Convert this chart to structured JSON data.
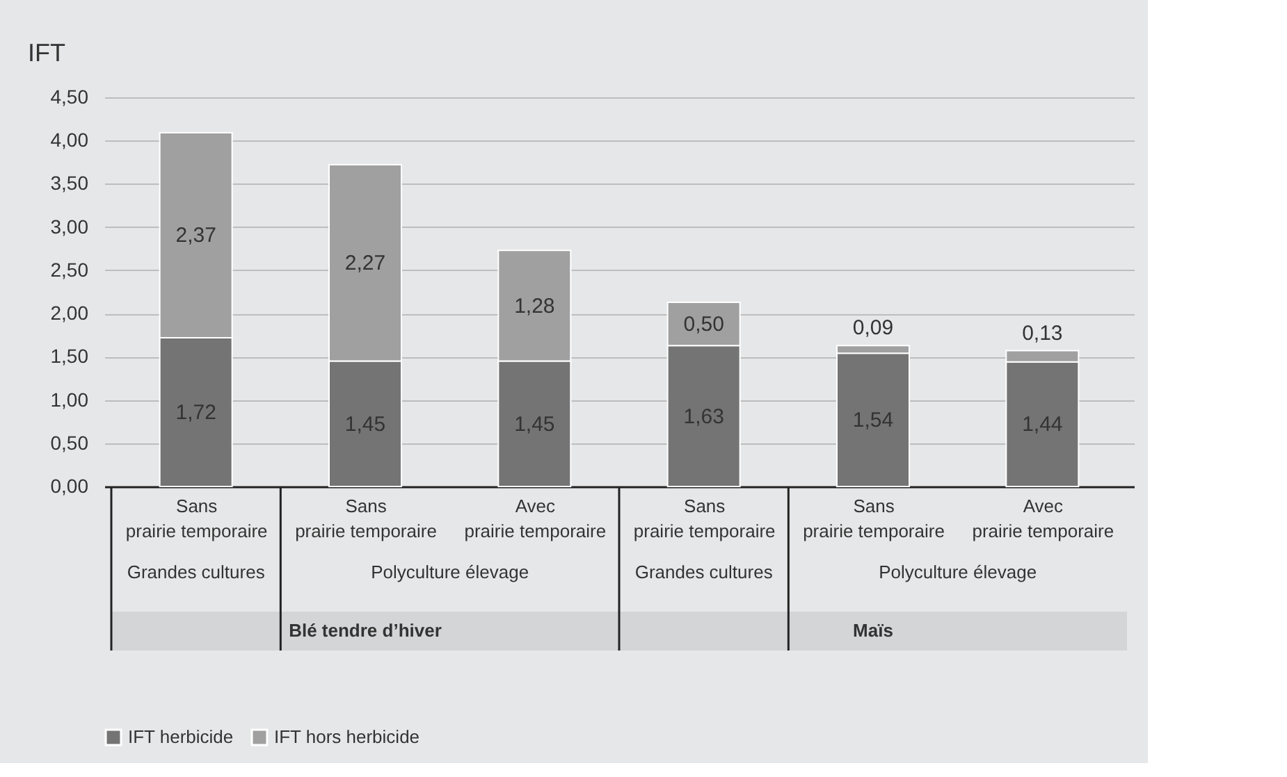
{
  "chart_data": {
    "type": "bar",
    "stacked": true,
    "ylabel": "IFT",
    "categories": [
      "Sans\nprairie temporaire",
      "Sans\nprairie temporaire",
      "Avec\nprairie temporaire",
      "Sans\nprairie temporaire",
      "Sans\nprairie temporaire",
      "Avec\nprairie temporaire"
    ],
    "series": [
      {
        "name": "IFT herbicide",
        "color": "#747474",
        "values": [
          1.72,
          1.45,
          1.45,
          1.63,
          1.54,
          1.44
        ],
        "value_labels": [
          "1,72",
          "1,45",
          "1,45",
          "1,63",
          "1,54",
          "1,44"
        ]
      },
      {
        "name": "IFT hors herbicide",
        "color": "#a0a0a0",
        "values": [
          2.37,
          2.27,
          1.28,
          0.5,
          0.09,
          0.13
        ],
        "value_labels": [
          "2,37",
          "2,27",
          "1,28",
          "0,50",
          "0,09",
          "0,13"
        ]
      }
    ],
    "ylim": [
      0,
      4.5
    ],
    "yticks": [
      {
        "value": 0,
        "label": "0,00"
      },
      {
        "value": 0.5,
        "label": "0,50"
      },
      {
        "value": 1,
        "label": "1,00"
      },
      {
        "value": 1.5,
        "label": "1,50"
      },
      {
        "value": 2,
        "label": "2,00"
      },
      {
        "value": 2.5,
        "label": "2,50"
      },
      {
        "value": 3,
        "label": "3,00"
      },
      {
        "value": 3.5,
        "label": "3,50"
      },
      {
        "value": 4,
        "label": "4,00"
      },
      {
        "value": 4.5,
        "label": "4,50"
      }
    ],
    "annotations": [
      "Grandes cultures",
      "Polyculture élevage",
      "Grandes cultures",
      "Polyculture élevage",
      "Blé tendre d’hiver",
      "Maïs"
    ],
    "grid": "y",
    "legend": "bottom"
  }
}
